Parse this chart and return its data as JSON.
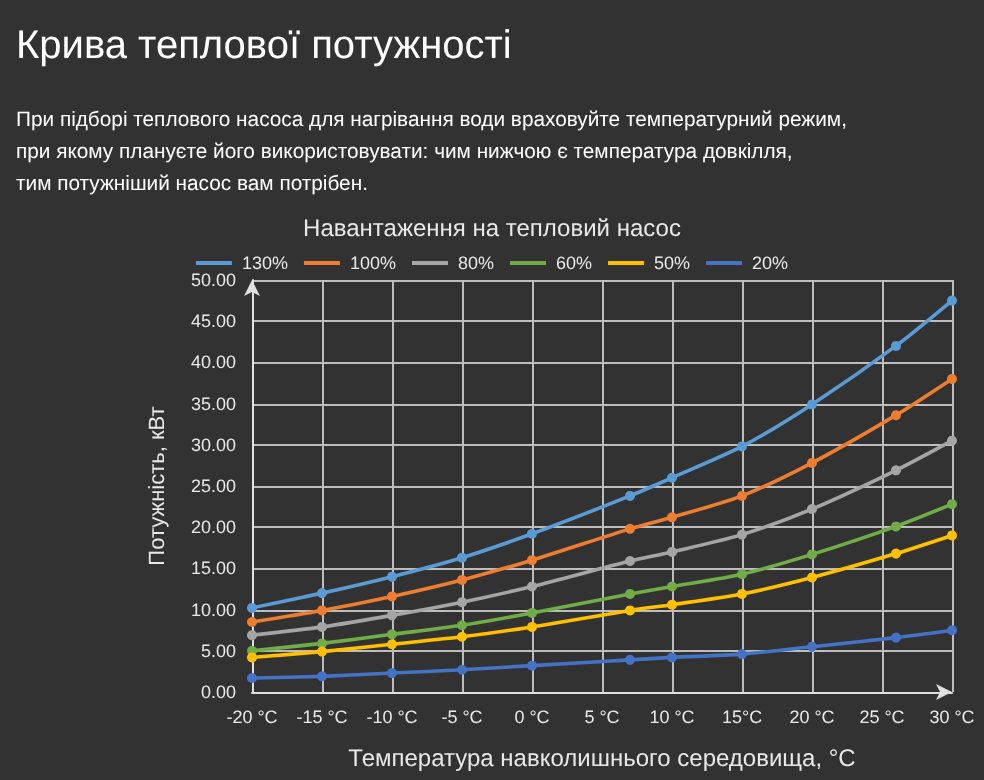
{
  "chart_data": {
    "type": "line",
    "title": "Крива теплової потужності",
    "subtitle": "При підборі теплового насоса для нагрівання води враховуйте температурний режим,\nпри якому плануєте його використовувати: чим нижчою є температура довкілля,\nтим потужніший насос вам потрібен.",
    "legend_title": "Навантаження на тепловий насос",
    "xlabel": "Температура навколишнього середовища, °C",
    "ylabel": "Потужність, кВт",
    "x": [
      -20,
      -15,
      -10,
      -5,
      0,
      7,
      10,
      15,
      20,
      26,
      30
    ],
    "series": [
      {
        "name": "130%",
        "color": "#5b9bd5",
        "values": [
          10.2,
          12,
          14,
          16.3,
          19.2,
          23.8,
          26,
          29.8,
          34.9,
          42,
          47.5
        ]
      },
      {
        "name": "100%",
        "color": "#ed7d31",
        "values": [
          8.5,
          9.9,
          11.6,
          13.6,
          16,
          19.8,
          21.2,
          23.8,
          27.8,
          33.6,
          38
        ]
      },
      {
        "name": "80%",
        "color": "#a5a5a5",
        "values": [
          6.9,
          7.9,
          9.3,
          10.9,
          12.8,
          15.9,
          17,
          19.1,
          22.2,
          26.9,
          30.5
        ]
      },
      {
        "name": "60%",
        "color": "#70ad47",
        "values": [
          5,
          5.9,
          7,
          8.1,
          9.6,
          11.9,
          12.8,
          14.3,
          16.7,
          20.1,
          22.8
        ]
      },
      {
        "name": "50%",
        "color": "#ffc000",
        "values": [
          4.2,
          4.9,
          5.8,
          6.7,
          7.9,
          9.9,
          10.6,
          11.9,
          13.9,
          16.8,
          19
        ]
      },
      {
        "name": "20%",
        "color": "#4472c4",
        "values": [
          1.7,
          1.9,
          2.3,
          2.7,
          3.2,
          3.9,
          4.2,
          4.6,
          5.5,
          6.6,
          7.5
        ]
      }
    ],
    "xlim": [
      -20,
      30
    ],
    "xticks": [
      {
        "value": -20,
        "label": "-20 °C"
      },
      {
        "value": -15,
        "label": "-15 °C"
      },
      {
        "value": -10,
        "label": "-10 °C"
      },
      {
        "value": -5,
        "label": "-5 °C"
      },
      {
        "value": 0,
        "label": "0 °C"
      },
      {
        "value": 5,
        "label": "5 °C"
      },
      {
        "value": 10,
        "label": "10 °C"
      },
      {
        "value": 15,
        "label": "15°C"
      },
      {
        "value": 20,
        "label": "20 °C"
      },
      {
        "value": 25,
        "label": "25 °C"
      },
      {
        "value": 30,
        "label": "30 °C"
      }
    ],
    "ylim": [
      0,
      50
    ],
    "yticks": [
      {
        "value": 0,
        "label": "0.00"
      },
      {
        "value": 5,
        "label": "5.00"
      },
      {
        "value": 10,
        "label": "10.00"
      },
      {
        "value": 15,
        "label": "15.00"
      },
      {
        "value": 20,
        "label": "20.00"
      },
      {
        "value": 25,
        "label": "25.00"
      },
      {
        "value": 30,
        "label": "30.00"
      },
      {
        "value": 35,
        "label": "35.00"
      },
      {
        "value": 40,
        "label": "40.00"
      },
      {
        "value": 45,
        "label": "45.00"
      },
      {
        "value": 50,
        "label": "50.00"
      }
    ],
    "grid": true,
    "legend": "top",
    "marker": "circle",
    "line_style": "solid"
  }
}
